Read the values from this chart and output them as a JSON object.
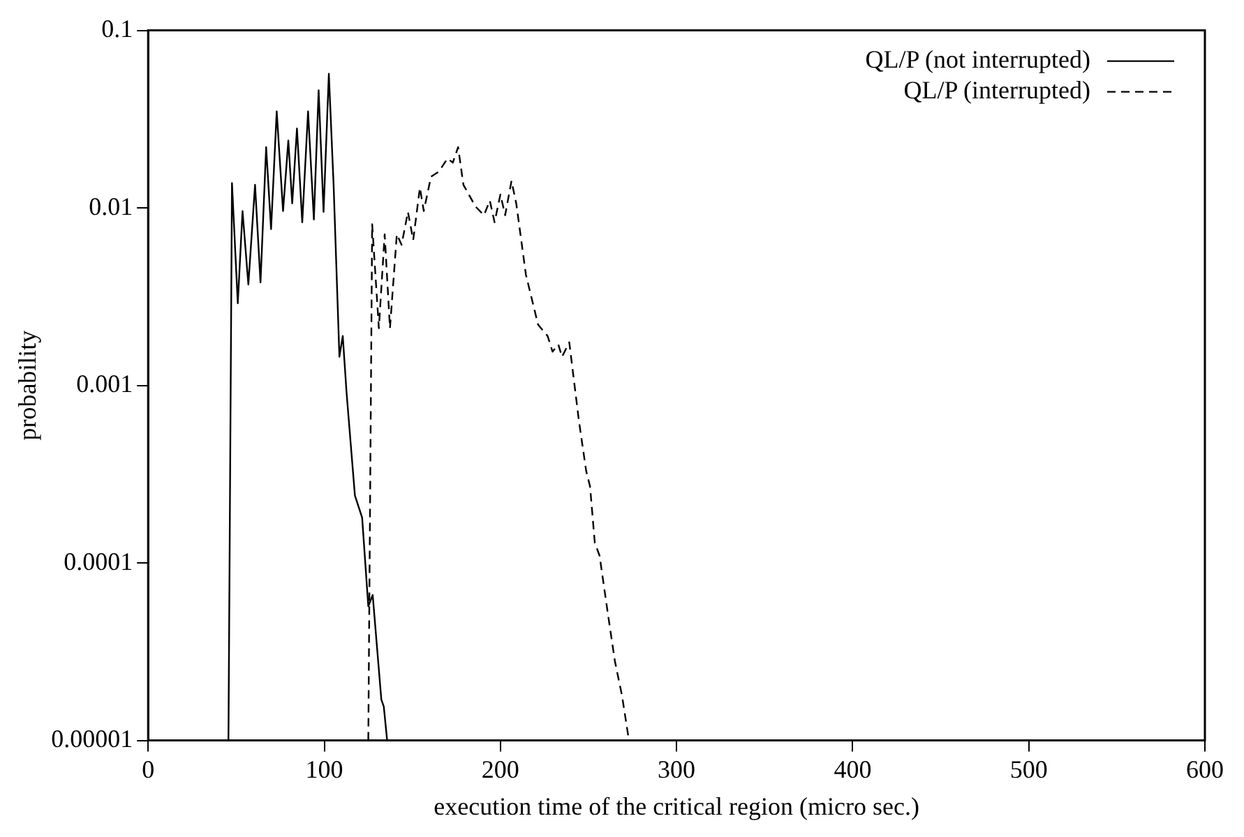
{
  "chart_data": {
    "type": "line",
    "xlabel": "execution time of the critical region (micro sec.)",
    "ylabel": "probability",
    "log": "y",
    "grid": false,
    "legend": "top right",
    "xlim": [
      0,
      600
    ],
    "xticks": [
      0,
      100,
      200,
      300,
      400,
      500,
      600
    ],
    "ylim": [
      1e-05,
      0.1
    ],
    "yticks": [
      0.1,
      0.01,
      0.001,
      0.0001,
      {
        "value": 1e-05,
        "label": "0.00001"
      }
    ],
    "series": [
      {
        "name": "QL/P (not interrupted)",
        "color": "#000000",
        "line_style": "solid",
        "x": [
          45.6,
          47.6,
          50.9,
          53.6,
          56.9,
          60.7,
          63.8,
          67,
          69.8,
          73,
          76.6,
          79.6,
          81.8,
          84.5,
          87.5,
          90.8,
          94.1,
          96.8,
          99.6,
          102.6,
          105.3,
          108.6,
          110.5,
          112.7,
          117.4,
          119.3,
          121.5,
          125,
          127.5,
          132.4,
          133.8,
          135.7
        ],
        "values": [
          1e-05,
          0.0138,
          0.0029,
          0.0096,
          0.0037,
          0.0135,
          0.0038,
          0.022,
          0.0076,
          0.035,
          0.0096,
          0.024,
          0.0106,
          0.028,
          0.0083,
          0.035,
          0.0086,
          0.046,
          0.0095,
          0.057,
          0.0135,
          0.00145,
          0.0019,
          0.0009,
          0.00024,
          0.00021,
          0.00018,
          5.7e-05,
          6.6e-05,
          1.7e-05,
          1.55e-05,
          1e-05
        ]
      },
      {
        "name": "QL/P (interrupted)",
        "color": "#000000",
        "line_style": "dashed",
        "x": [
          125,
          127.2,
          131,
          134.3,
          137.3,
          141.2,
          143.9,
          147.5,
          150.5,
          154.3,
          156.5,
          160.6,
          165,
          170,
          173,
          176,
          179,
          185.8,
          190.7,
          194,
          196.7,
          200,
          202.7,
          206.3,
          209,
          214.5,
          221.4,
          226.8,
          229.6,
          232.9,
          235,
          239.1,
          244.6,
          248.7,
          250.9,
          253.6,
          256.3,
          261,
          265,
          269,
          273
        ],
        "values": [
          1e-05,
          0.0081,
          0.0021,
          0.0071,
          0.0021,
          0.0071,
          0.0062,
          0.0095,
          0.0066,
          0.013,
          0.0096,
          0.015,
          0.016,
          0.019,
          0.018,
          0.022,
          0.0135,
          0.0102,
          0.0091,
          0.011,
          0.0083,
          0.0119,
          0.0091,
          0.0142,
          0.0106,
          0.0042,
          0.0022,
          0.0019,
          0.00155,
          0.0017,
          0.00145,
          0.00175,
          0.00063,
          0.00033,
          0.00027,
          0.00013,
          0.00011,
          5.2e-05,
          2.8e-05,
          1.8e-05,
          1e-05
        ]
      }
    ]
  }
}
